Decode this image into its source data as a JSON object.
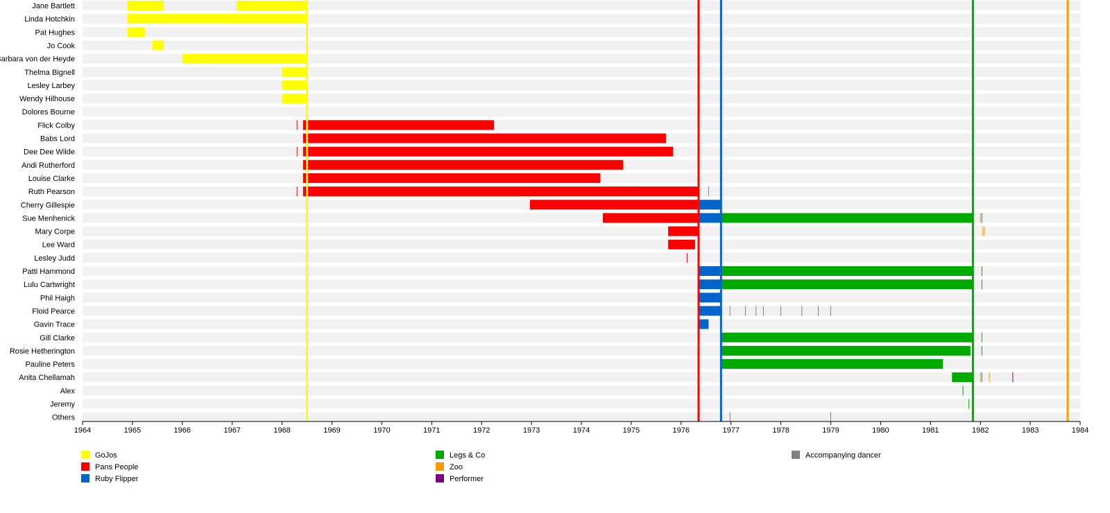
{
  "chart_data": {
    "type": "timeline",
    "title": "",
    "xlim": [
      1964,
      1984
    ],
    "x_ticks": [
      "1964",
      "1965",
      "1966",
      "1967",
      "1968",
      "1969",
      "1970",
      "1971",
      "1972",
      "1973",
      "1974",
      "1975",
      "1976",
      "1977",
      "1978",
      "1979",
      "1980",
      "1981",
      "1982",
      "1983",
      "1984"
    ],
    "groups": [
      {
        "key": "gojos",
        "name": "GoJos",
        "color": "#ffff00"
      },
      {
        "key": "pans",
        "name": "Pans People",
        "color": "#ff0000"
      },
      {
        "key": "ruby",
        "name": "Ruby Flipper",
        "color": "#0066cc"
      },
      {
        "key": "legs",
        "name": "Legs & Co",
        "color": "#00aa00"
      },
      {
        "key": "zoo",
        "name": "Zoo",
        "color": "#ff9900"
      },
      {
        "key": "performer",
        "name": "Performer",
        "color": "#800080"
      },
      {
        "key": "acc",
        "name": "Accompanying dancer",
        "color": "#808080"
      }
    ],
    "era_lines": [
      {
        "date": 1968.5,
        "group": "gojos"
      },
      {
        "date": 1976.35,
        "group": "pans"
      },
      {
        "date": 1976.8,
        "group": "ruby"
      },
      {
        "date": 1981.85,
        "group": "legs"
      },
      {
        "date": 1983.75,
        "group": "zoo"
      }
    ],
    "members": [
      {
        "name": "Jane Bartlett",
        "bars": [
          [
            1964.9,
            1965.63,
            "gojos"
          ],
          [
            1967.09,
            1968.5,
            "gojos"
          ]
        ],
        "marks": []
      },
      {
        "name": "Linda Hotchkin",
        "bars": [
          [
            1964.9,
            1968.5,
            "gojos"
          ]
        ],
        "marks": []
      },
      {
        "name": "Pat Hughes",
        "bars": [
          [
            1964.9,
            1965.25,
            "gojos"
          ]
        ],
        "marks": []
      },
      {
        "name": "Jo Cook",
        "bars": [
          [
            1965.4,
            1965.63,
            "gojos"
          ]
        ],
        "marks": []
      },
      {
        "name": "Barbara von der Heyde",
        "bars": [
          [
            1966.0,
            1968.5,
            "gojos"
          ]
        ],
        "marks": []
      },
      {
        "name": "Thelma Bignell",
        "bars": [
          [
            1968.0,
            1968.5,
            "gojos"
          ]
        ],
        "marks": []
      },
      {
        "name": "Lesley Larbey",
        "bars": [
          [
            1968.0,
            1968.5,
            "gojos"
          ]
        ],
        "marks": []
      },
      {
        "name": "Wendy Hilhouse",
        "bars": [
          [
            1968.0,
            1968.5,
            "gojos"
          ]
        ],
        "marks": []
      },
      {
        "name": "Dolores Bourne",
        "bars": [],
        "marks": []
      },
      {
        "name": "Flick Colby",
        "bars": [
          [
            1968.42,
            1972.25,
            "pans"
          ]
        ],
        "marks": [
          [
            1968.3,
            "pans"
          ]
        ]
      },
      {
        "name": "Babs Lord",
        "bars": [
          [
            1968.42,
            1975.7,
            "pans"
          ]
        ],
        "marks": []
      },
      {
        "name": "Dee Dee Wilde",
        "bars": [
          [
            1968.42,
            1975.84,
            "pans"
          ]
        ],
        "marks": [
          [
            1968.3,
            "pans"
          ]
        ]
      },
      {
        "name": "Andi Rutherford",
        "bars": [
          [
            1968.42,
            1974.84,
            "pans"
          ]
        ],
        "marks": []
      },
      {
        "name": "Louise Clarke",
        "bars": [
          [
            1968.42,
            1974.38,
            "pans"
          ]
        ],
        "marks": []
      },
      {
        "name": "Ruth Pearson",
        "bars": [
          [
            1968.42,
            1976.35,
            "pans"
          ]
        ],
        "marks": [
          [
            1968.3,
            "pans"
          ],
          [
            1976.55,
            "acc"
          ]
        ]
      },
      {
        "name": "Cherry Gillespie",
        "bars": [
          [
            1972.97,
            1976.35,
            "pans"
          ],
          [
            1976.35,
            1976.8,
            "ruby"
          ]
        ],
        "marks": []
      },
      {
        "name": "Sue Menhenick",
        "bars": [
          [
            1974.43,
            1976.35,
            "pans"
          ],
          [
            1976.35,
            1976.8,
            "ruby"
          ],
          [
            1976.8,
            1981.85,
            "legs"
          ]
        ],
        "marks": [
          [
            1982.0,
            "zoo"
          ],
          [
            1982.03,
            "legs"
          ]
        ]
      },
      {
        "name": "Mary Corpe",
        "bars": [
          [
            1975.74,
            1976.35,
            "pans"
          ]
        ],
        "marks": [
          [
            1982.05,
            "zoo"
          ],
          [
            1982.08,
            "zoo"
          ]
        ]
      },
      {
        "name": "Lee Ward",
        "bars": [
          [
            1975.74,
            1976.28,
            "pans"
          ]
        ],
        "marks": []
      },
      {
        "name": "Lesley Judd",
        "bars": [],
        "marks": [
          [
            1976.12,
            "pans"
          ]
        ]
      },
      {
        "name": "Patti Hammond",
        "bars": [
          [
            1976.35,
            1976.8,
            "ruby"
          ],
          [
            1976.8,
            1981.85,
            "legs"
          ]
        ],
        "marks": [
          [
            1982.03,
            "legs"
          ]
        ]
      },
      {
        "name": "Lulu Cartwright",
        "bars": [
          [
            1976.35,
            1976.8,
            "ruby"
          ],
          [
            1976.8,
            1981.85,
            "legs"
          ]
        ],
        "marks": [
          [
            1982.03,
            "legs"
          ]
        ]
      },
      {
        "name": "Phil Haigh",
        "bars": [
          [
            1976.35,
            1976.8,
            "ruby"
          ]
        ],
        "marks": []
      },
      {
        "name": "Floid Pearce",
        "bars": [
          [
            1976.35,
            1976.8,
            "ruby"
          ]
        ],
        "marks": [
          [
            1976.98,
            "acc"
          ],
          [
            1977.29,
            "acc"
          ],
          [
            1977.5,
            "acc"
          ],
          [
            1977.65,
            "acc"
          ],
          [
            1978.0,
            "acc"
          ],
          [
            1978.42,
            "acc"
          ],
          [
            1978.75,
            "acc"
          ],
          [
            1979.0,
            "acc"
          ]
        ]
      },
      {
        "name": "Gavin Trace",
        "bars": [
          [
            1976.35,
            1976.55,
            "ruby"
          ]
        ],
        "marks": []
      },
      {
        "name": "Gill Clarke",
        "bars": [
          [
            1976.8,
            1981.85,
            "legs"
          ]
        ],
        "marks": [
          [
            1982.03,
            "legs"
          ]
        ]
      },
      {
        "name": "Rosie Hetherington",
        "bars": [
          [
            1976.8,
            1981.8,
            "legs"
          ]
        ],
        "marks": [
          [
            1982.03,
            "legs"
          ]
        ]
      },
      {
        "name": "Pauline Peters",
        "bars": [
          [
            1976.8,
            1981.25,
            "legs"
          ]
        ],
        "marks": []
      },
      {
        "name": "Anita Chellamah",
        "bars": [
          [
            1981.43,
            1981.85,
            "legs"
          ]
        ],
        "marks": [
          [
            1982.0,
            "zoo"
          ],
          [
            1982.03,
            "legs"
          ],
          [
            1982.18,
            "zoo"
          ],
          [
            1982.65,
            "performer"
          ]
        ]
      },
      {
        "name": "Alex",
        "bars": [],
        "marks": [
          [
            1981.65,
            "legs"
          ]
        ]
      },
      {
        "name": "Jeremy",
        "bars": [],
        "marks": [
          [
            1981.77,
            "legs"
          ]
        ]
      },
      {
        "name": "Others",
        "bars": [],
        "marks": [
          [
            1976.98,
            "acc"
          ],
          [
            1979.0,
            "acc"
          ]
        ]
      }
    ]
  }
}
